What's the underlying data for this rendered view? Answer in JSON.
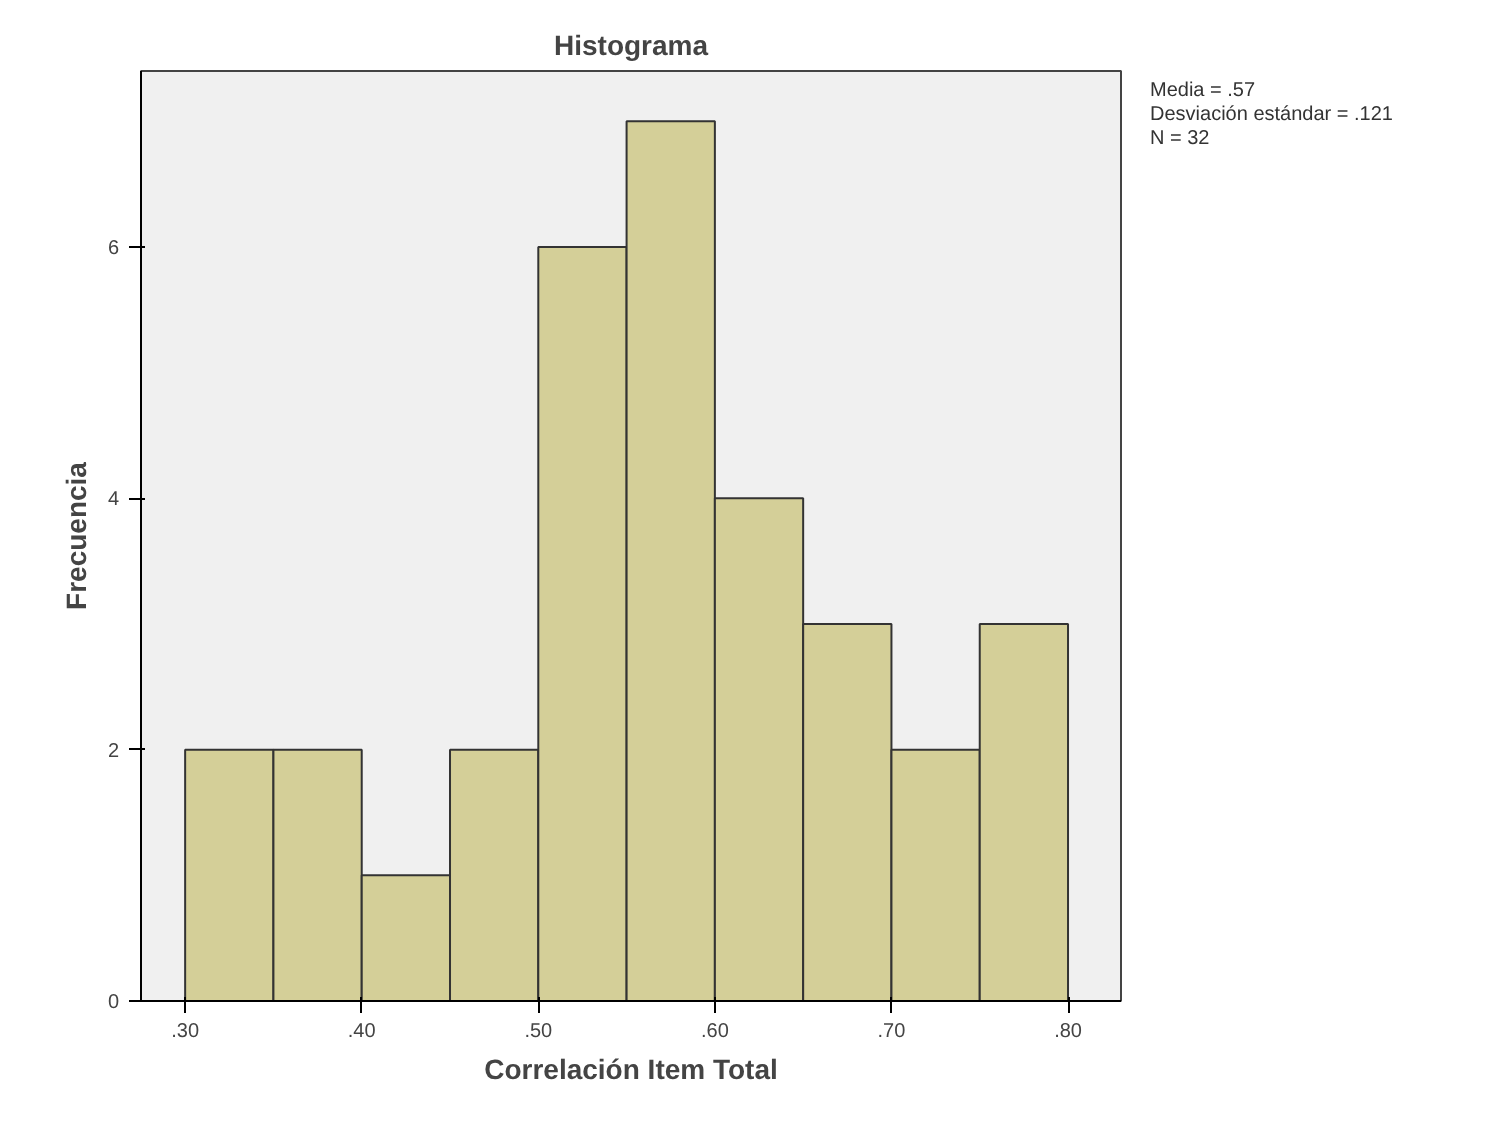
{
  "chart_data": {
    "type": "histogram",
    "title": "Histograma",
    "xlabel": "Correlación Item Total",
    "ylabel": "Frecuencia",
    "bins": [
      0.3,
      0.35,
      0.4,
      0.45,
      0.5,
      0.55,
      0.6,
      0.65,
      0.7,
      0.75,
      0.8
    ],
    "values": [
      2,
      2,
      1,
      2,
      6,
      7,
      4,
      3,
      2,
      3
    ],
    "color": "#d4cf98",
    "xlim": [
      0.275,
      0.83
    ],
    "ylim": [
      0,
      7.4
    ],
    "xticks": [
      {
        "value": 0.3,
        "label": ".30"
      },
      {
        "value": 0.4,
        "label": ".40"
      },
      {
        "value": 0.5,
        "label": ".50"
      },
      {
        "value": 0.6,
        "label": ".60"
      },
      {
        "value": 0.7,
        "label": ".70"
      },
      {
        "value": 0.8,
        "label": ".80"
      }
    ],
    "yticks": [
      0,
      2,
      4,
      6
    ],
    "annotations": [
      "Media = .57",
      "Desviación estándar = .121",
      "N = 32"
    ],
    "grid": false
  }
}
